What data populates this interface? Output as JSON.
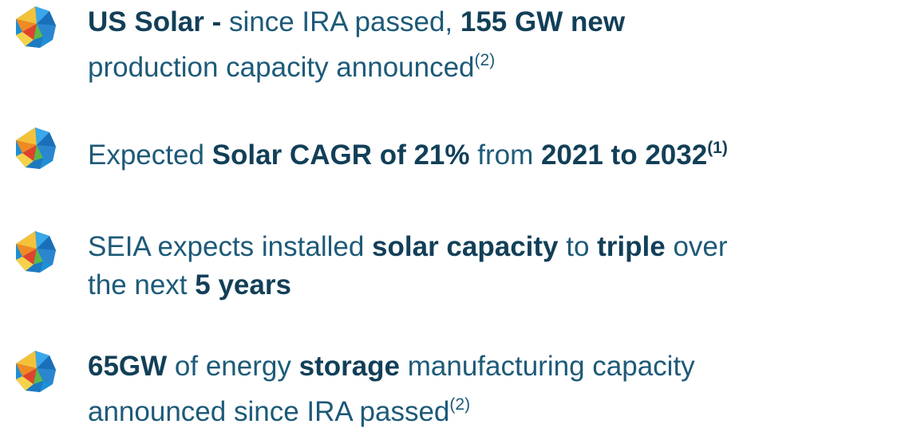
{
  "bullets": [
    {
      "lines": [
        [
          {
            "text": "US Solar - ",
            "style": "bold"
          },
          {
            "text": "since IRA passed, ",
            "style": "normal"
          },
          {
            "text": "155 GW new",
            "style": "bold"
          }
        ],
        [
          {
            "text": "production capacity announced",
            "style": "normal"
          },
          {
            "text": "(2)",
            "style": "sup"
          }
        ]
      ]
    },
    {
      "lines": [
        [
          {
            "text": "Expected ",
            "style": "normal"
          },
          {
            "text": "Solar CAGR of 21%",
            "style": "bold"
          },
          {
            "text": " from ",
            "style": "normal"
          },
          {
            "text": "2021 to 2032",
            "style": "bold"
          },
          {
            "text": "(1)",
            "style": "bold-sup"
          }
        ]
      ]
    },
    {
      "lines": [
        [
          {
            "text": "SEIA expects installed ",
            "style": "normal"
          },
          {
            "text": "solar capacity",
            "style": "bold"
          },
          {
            "text": " to ",
            "style": "normal"
          },
          {
            "text": "triple",
            "style": "bold"
          },
          {
            "text": " over",
            "style": "normal"
          }
        ],
        [
          {
            "text": "the next ",
            "style": "normal"
          },
          {
            "text": "5 years",
            "style": "bold"
          }
        ]
      ]
    },
    {
      "lines": [
        [
          {
            "text": "65GW",
            "style": "bold"
          },
          {
            "text": " of energy ",
            "style": "normal"
          },
          {
            "text": "storage",
            "style": "bold"
          },
          {
            "text": " manufacturing capacity",
            "style": "normal"
          }
        ],
        [
          {
            "text": "announced since IRA passed",
            "style": "normal"
          },
          {
            "text": "(2)",
            "style": "sup"
          }
        ]
      ]
    }
  ]
}
